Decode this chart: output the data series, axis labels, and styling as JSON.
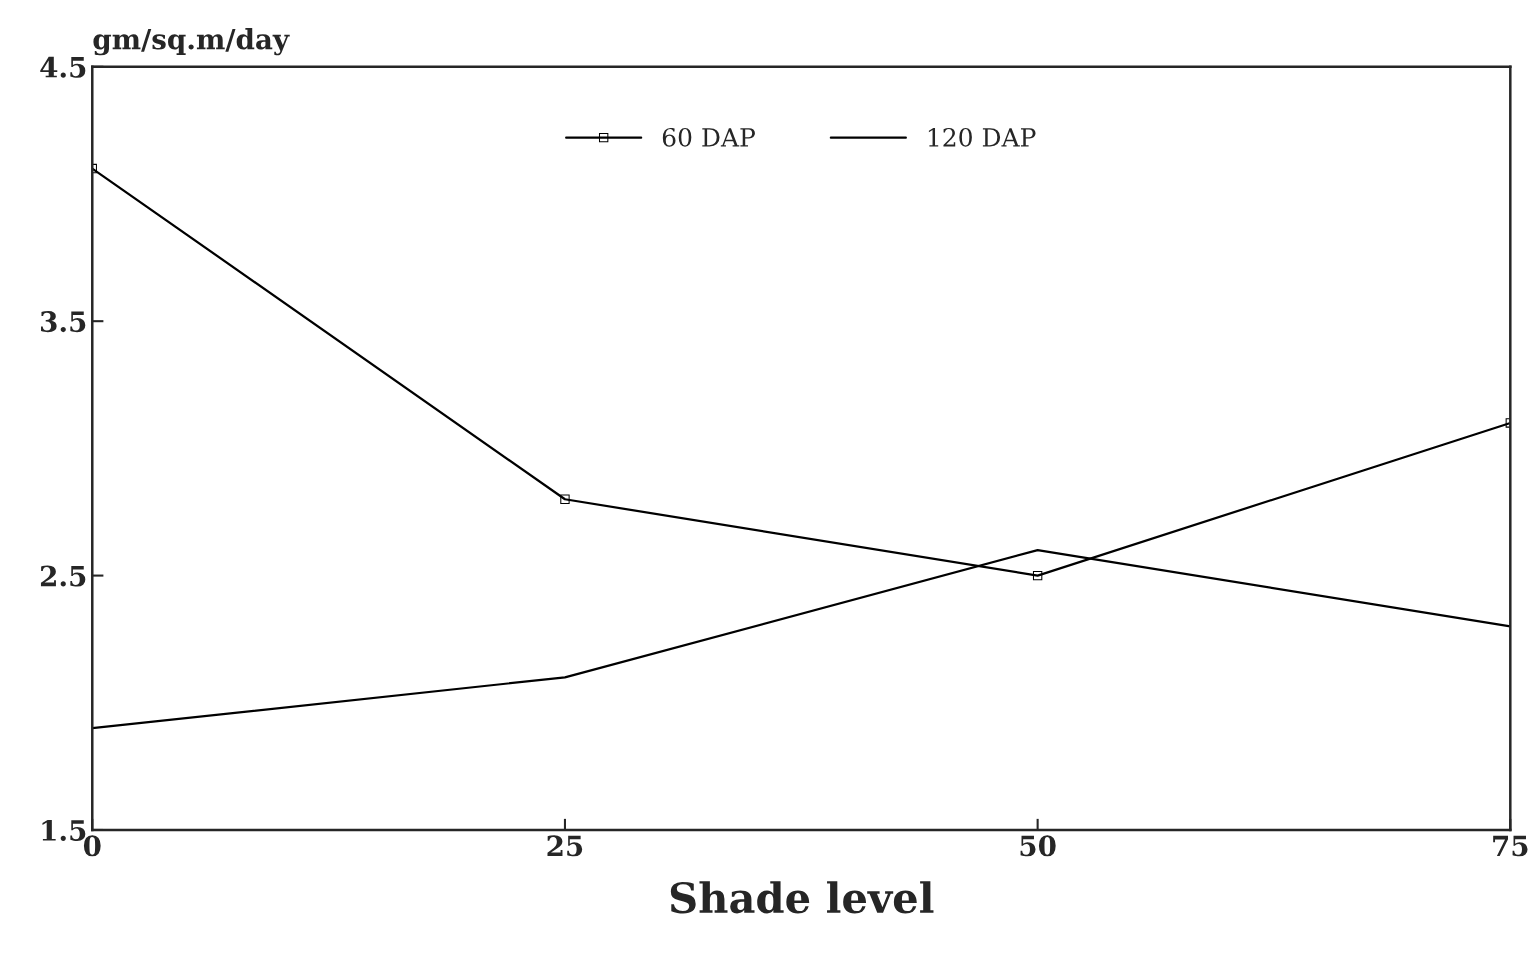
{
  "chart_data": {
    "type": "line",
    "xlabel": "Shade level",
    "ylabel": "gm/sq.m/day",
    "x": [
      0,
      25,
      50,
      75
    ],
    "series": [
      {
        "name": "60 DAP",
        "color": "#000000",
        "marker": "square",
        "values": [
          4.1,
          2.8,
          2.5,
          3.1
        ]
      },
      {
        "name": "120 DAP",
        "color": "#000000",
        "marker": "none",
        "values": [
          1.9,
          2.1,
          2.6,
          2.3
        ]
      }
    ],
    "xlim": [
      0,
      75
    ],
    "xticks": [
      0,
      25,
      50,
      75
    ],
    "ylim": [
      1.5,
      4.5
    ],
    "yticks": [
      1.5,
      2.5,
      3.5,
      4.5
    ],
    "grid": false,
    "legend": "top",
    "line_style": "solid"
  }
}
